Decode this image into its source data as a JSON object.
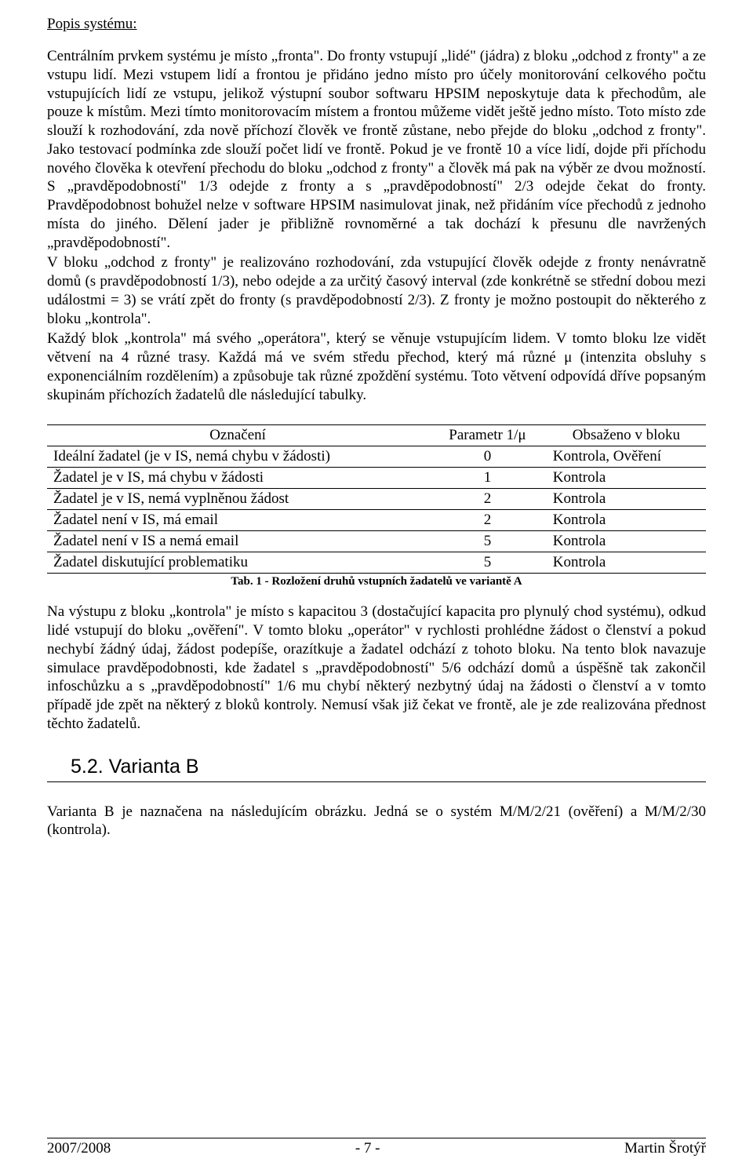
{
  "heading": "Popis systému:",
  "para1": "Centrálním prvkem systému je místo „fronta\". Do fronty vstupují „lidé\" (jádra) z bloku „odchod z fronty\" a ze vstupu lidí. Mezi vstupem lidí a frontou je přidáno jedno místo pro účely monitorování celkového počtu vstupujících lidí ze vstupu, jelikož výstupní soubor softwaru HPSIM neposkytuje data k přechodům, ale pouze k místům. Mezi tímto monitorovacím místem a frontou můžeme vidět ještě jedno místo. Toto místo zde slouží k rozhodování, zda nově příchozí člověk ve frontě zůstane, nebo přejde do bloku „odchod z fronty\". Jako testovací podmínka zde slouží počet lidí ve frontě. Pokud je ve frontě 10 a více lidí, dojde při příchodu nového člověka k otevření přechodu do bloku „odchod z fronty\" a člověk má pak na výběr ze dvou možností. S „pravděpodobností\" 1/3 odejde z fronty a s „pravděpodobností\" 2/3 odejde čekat do fronty. Pravděpodobnost bohužel nelze v software HPSIM nasimulovat jinak, než přidáním více přechodů z jednoho místa do jiného. Dělení jader je přibližně rovnoměrné a tak dochází k přesunu dle navržených „pravděpodobností\".",
  "para2": "V bloku „odchod z fronty\" je realizováno rozhodování, zda vstupující člověk odejde z fronty nenávratně domů (s pravděpodobností 1/3), nebo odejde a za určitý časový interval (zde konkrétně se střední dobou mezi událostmi = 3) se vrátí zpět do fronty (s pravděpodobností 2/3). Z fronty je možno postoupit do některého z bloku „kontrola\".",
  "para3": "Každý blok „kontrola\" má svého „operátora\", který se věnuje vstupujícím lidem. V tomto bloku lze vidět větvení na 4 různé trasy. Každá má ve svém středu přechod, který má různé μ (intenzita obsluhy s exponenciálním rozdělením) a způsobuje tak různé zpoždění systému. Toto větvení odpovídá dříve popsaným skupinám příchozích žadatelů dle následující tabulky.",
  "table": {
    "columns": [
      "Označení",
      "Parametr 1/μ",
      "Obsaženo v bloku"
    ],
    "rows": [
      [
        "Ideální žadatel (je v IS, nemá chybu v žádosti)",
        "0",
        "Kontrola, Ověření"
      ],
      [
        "Žadatel je v IS, má chybu v žádosti",
        "1",
        "Kontrola"
      ],
      [
        "Žadatel je v IS, nemá vyplněnou žádost",
        "2",
        "Kontrola"
      ],
      [
        "Žadatel není v IS, má email",
        "2",
        "Kontrola"
      ],
      [
        "Žadatel není v IS a nemá email",
        "5",
        "Kontrola"
      ],
      [
        "Žadatel diskutující problematiku",
        "5",
        "Kontrola"
      ]
    ],
    "caption": "Tab. 1 - Rozložení druhů vstupních žadatelů ve variantě A"
  },
  "para4": "Na výstupu z bloku „kontrola\" je místo s kapacitou 3 (dostačující kapacita pro plynulý chod systému), odkud lidé vstupují do bloku „ověření\". V tomto bloku „operátor\" v rychlosti prohlédne žádost o členství a pokud nechybí žádný údaj, žádost podepíše, orazítkuje a žadatel odchází z tohoto bloku. Na tento blok navazuje simulace pravděpodobnosti, kde žadatel s „pravděpodobností\" 5/6 odchází domů a úspěšně tak zakončil infoschůzku a s „pravděpodobností\" 1/6 mu chybí některý nezbytný údaj na žádosti o členství a v tomto případě jde zpět na některý z bloků kontroly. Nemusí však již čekat ve frontě, ale je zde realizována přednost těchto žadatelů.",
  "section": {
    "number": "5.2.",
    "title": "Varianta B"
  },
  "para5": "Varianta B je naznačena na následujícím obrázku. Jedná se o systém M/M/2/21 (ověření) a M/M/2/30 (kontrola).",
  "footer": {
    "left": "2007/2008",
    "center": "- 7 -",
    "right": "Martin Šrotýř"
  }
}
